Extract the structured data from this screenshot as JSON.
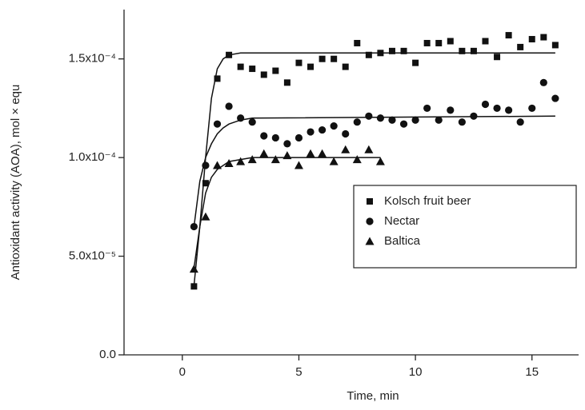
{
  "chart_data": {
    "type": "scatter",
    "x_label": "Time, min",
    "y_label": "Antioxidant activity (AOA), mol × equ",
    "xlim": [
      -2.5,
      17
    ],
    "xticks": [
      0,
      5,
      10,
      15
    ],
    "ylim": [
      0,
      0.000175
    ],
    "yticks": [
      {
        "value": 0,
        "label": "0.0"
      },
      {
        "value": 5e-05,
        "label": "5.0x10⁻⁵"
      },
      {
        "value": 0.0001,
        "label": "1.0x10⁻⁴"
      },
      {
        "value": 0.00015,
        "label": "1.5x10⁻⁴"
      }
    ],
    "series": [
      {
        "name": "Kolsch fruit beer",
        "color": "#111111",
        "marker": "square",
        "x": [
          0.5,
          1,
          1.5,
          2,
          2.5,
          3,
          3.5,
          4,
          4.5,
          5,
          5.5,
          6,
          6.5,
          7,
          7.5,
          8,
          8.5,
          9,
          9.5,
          10,
          10.5,
          11,
          11.5,
          12,
          12.5,
          13,
          13.5,
          14,
          14.5,
          15,
          15.5,
          16
        ],
        "values": [
          3.47e-05,
          8.7e-05,
          0.00014,
          0.000152,
          0.000146,
          0.000145,
          0.000142,
          0.000144,
          0.000138,
          0.000148,
          0.000146,
          0.00015,
          0.00015,
          0.000146,
          0.000158,
          0.000152,
          0.000153,
          0.000154,
          0.000154,
          0.000148,
          0.000158,
          0.000158,
          0.000159,
          0.000154,
          0.000154,
          0.000159,
          0.000151,
          0.000162,
          0.000156,
          0.00016,
          0.000161,
          0.000157
        ],
        "fit_x": [
          0.5,
          0.75,
          1,
          1.25,
          1.5,
          1.75,
          2,
          2.5,
          3,
          16
        ],
        "fit_values": [
          3.5e-05,
          6.5e-05,
          0.0001,
          0.00013,
          0.000145,
          0.00015,
          0.000152,
          0.000153,
          0.000153,
          0.000153
        ]
      },
      {
        "name": "Nectar",
        "color": "#111111",
        "marker": "circle",
        "x": [
          0.5,
          1,
          1.5,
          2,
          2.5,
          3,
          3.5,
          4,
          4.5,
          5,
          5.5,
          6,
          6.5,
          7,
          7.5,
          8,
          8.5,
          9,
          9.5,
          10,
          10.5,
          11,
          11.5,
          12,
          12.5,
          13,
          13.5,
          14,
          14.5,
          15,
          15.5,
          16
        ],
        "values": [
          6.5e-05,
          9.6e-05,
          0.000117,
          0.000126,
          0.00012,
          0.000118,
          0.000111,
          0.00011,
          0.000107,
          0.00011,
          0.000113,
          0.000114,
          0.000116,
          0.000112,
          0.000118,
          0.000121,
          0.00012,
          0.000119,
          0.000117,
          0.000119,
          0.000125,
          0.000119,
          0.000124,
          0.000118,
          0.000121,
          0.000127,
          0.000125,
          0.000124,
          0.000118,
          0.000125,
          0.000138,
          0.00013
        ],
        "fit_x": [
          0.5,
          0.75,
          1,
          1.25,
          1.5,
          1.75,
          2,
          2.5,
          3,
          16
        ],
        "fit_values": [
          6.5e-05,
          8.8e-05,
          0.0001,
          0.000107,
          0.000112,
          0.000115,
          0.000117,
          0.000119,
          0.00012,
          0.000121
        ]
      },
      {
        "name": "Baltica",
        "color": "#111111",
        "marker": "triangle",
        "x": [
          0.5,
          1,
          1.5,
          2,
          2.5,
          3,
          3.5,
          4,
          4.5,
          5,
          5.5,
          6,
          6.5,
          7,
          7.5,
          8,
          8.5
        ],
        "values": [
          4.35e-05,
          7e-05,
          9.6e-05,
          9.7e-05,
          9.8e-05,
          9.9e-05,
          0.000102,
          9.9e-05,
          0.000101,
          9.6e-05,
          0.000102,
          0.000102,
          9.8e-05,
          0.000104,
          9.9e-05,
          0.000104,
          9.8e-05
        ],
        "fit_x": [
          0.5,
          0.75,
          1,
          1.25,
          1.5,
          2,
          2.5,
          3,
          8.5
        ],
        "fit_values": [
          4.4e-05,
          6.5e-05,
          8.2e-05,
          9e-05,
          9.4e-05,
          9.8e-05,
          9.9e-05,
          0.0001,
          0.0001
        ]
      }
    ]
  }
}
